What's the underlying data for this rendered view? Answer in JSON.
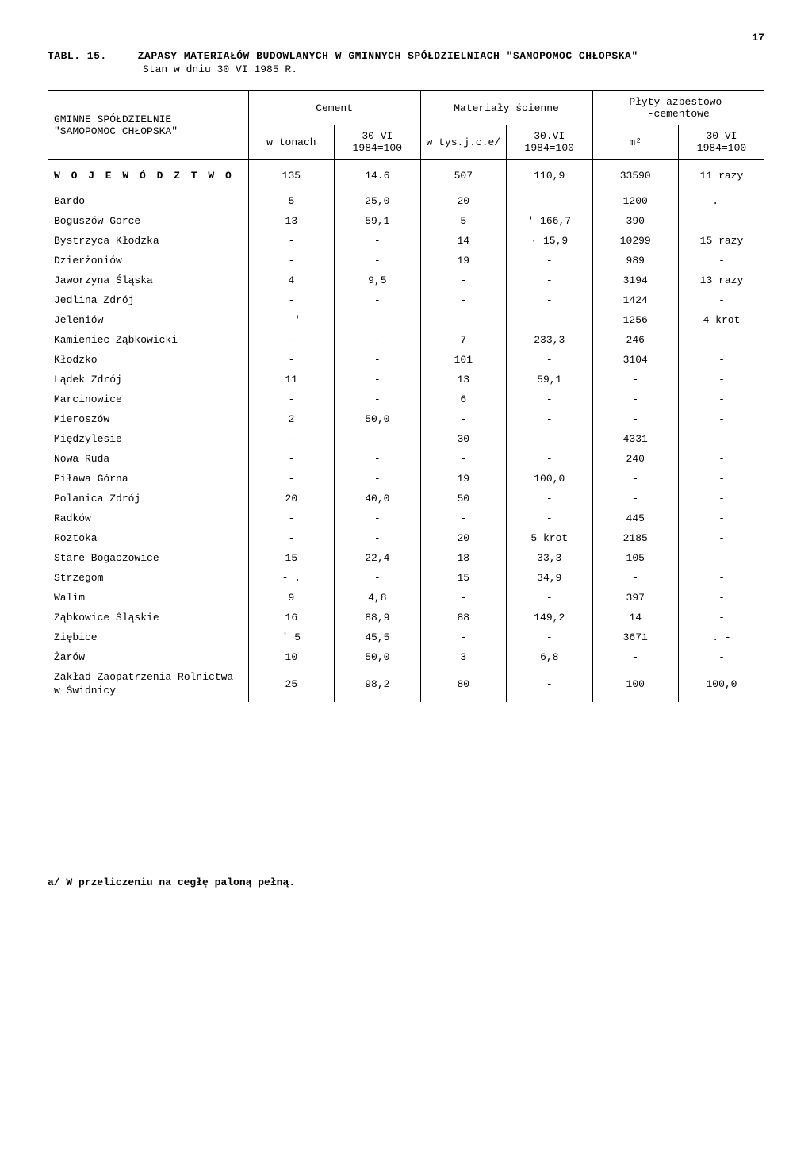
{
  "page_number": "17",
  "table_label": "TABL. 15.",
  "title": "ZAPASY MATERIAŁÓW BUDOWLANYCH W GMINNYCH SPÓŁDZIELNIACH \"SAMOPOMOC CHŁOPSKA\"",
  "subtitle": "Stan w dniu 30 VI 1985 R.",
  "header": {
    "col0_line1": "GMINNE SPÓŁDZIELNIE",
    "col0_line2": "\"SAMOPOMOC CHŁOPSKA\"",
    "group1": "Cement",
    "group2": "Materiały ścienne",
    "group3_line1": "Płyty azbestowo-",
    "group3_line2": "-cementowe",
    "sub_a": "w tonach",
    "sub_b": "30 VI 1984=100",
    "sub_c": "w tys.j.c.e/",
    "sub_d": "30.VI 1984=100",
    "sub_e": "m²",
    "sub_f": "30 VI 1984=100"
  },
  "rows": [
    {
      "label": "W O J E W Ó D Z T W O",
      "v": [
        "135",
        "14.6",
        "507",
        "110,9",
        "33590",
        "11 razy"
      ],
      "voiv": true
    },
    {
      "label": "Bardo",
      "v": [
        "5",
        "25,0",
        "20",
        "-",
        "1200",
        ". -"
      ]
    },
    {
      "label": "Boguszów-Gorce",
      "v": [
        "13",
        "59,1",
        "5",
        "' 166,7",
        "390",
        "-"
      ]
    },
    {
      "label": "Bystrzyca Kłodzka",
      "v": [
        "-",
        "-",
        "14",
        "· 15,9",
        "10299",
        "15 razy"
      ]
    },
    {
      "label": "Dzierżoniów",
      "v": [
        "-",
        "-",
        "19",
        "-",
        "989",
        "-"
      ]
    },
    {
      "label": "Jaworzyna Śląska",
      "v": [
        "4",
        "9,5",
        "-",
        "-",
        "3194",
        "13 razy"
      ]
    },
    {
      "label": "Jedlina Zdrój",
      "v": [
        "-",
        "-",
        "-",
        "-",
        "1424",
        "-"
      ]
    },
    {
      "label": "Jeleniów",
      "v": [
        "- '",
        "-",
        "-",
        "-",
        "1256",
        "4 krot"
      ]
    },
    {
      "label": "Kamieniec Ząbkowicki",
      "v": [
        "-",
        "-",
        "7",
        "233,3",
        "246",
        "-"
      ]
    },
    {
      "label": "Kłodzko",
      "v": [
        "-",
        "-",
        "101",
        "-",
        "3104",
        "-"
      ]
    },
    {
      "label": "Lądek Zdrój",
      "v": [
        "11",
        "-",
        "13",
        "59,1",
        "-",
        "-"
      ]
    },
    {
      "label": "Marcinowice",
      "v": [
        "-",
        "-",
        "6",
        "-",
        "-",
        "-"
      ]
    },
    {
      "label": "Mieroszów",
      "v": [
        "2",
        "50,0",
        "-",
        "-",
        "-",
        "-"
      ]
    },
    {
      "label": "Międzylesie",
      "v": [
        "-",
        "-",
        "30",
        "-",
        "4331",
        "-"
      ]
    },
    {
      "label": "Nowa Ruda",
      "v": [
        "-",
        "-",
        "-",
        "-",
        "240",
        "-"
      ]
    },
    {
      "label": "Piława Górna",
      "v": [
        "-",
        "-",
        "19",
        "100,0",
        "-",
        "-"
      ]
    },
    {
      "label": "Polanica Zdrój",
      "v": [
        "20",
        "40,0",
        "50",
        "-",
        "-",
        "-"
      ]
    },
    {
      "label": "Radków",
      "v": [
        "-",
        "-",
        "-",
        "-",
        "445",
        "-"
      ]
    },
    {
      "label": "Roztoka",
      "v": [
        "-",
        "-",
        "20",
        "5 krot",
        "2185",
        "-"
      ]
    },
    {
      "label": "Stare Bogaczowice",
      "v": [
        "15",
        "22,4",
        "18",
        "33,3",
        "105",
        "-"
      ]
    },
    {
      "label": "Strzegom",
      "v": [
        "- .",
        "-",
        "15",
        "34,9",
        "-",
        "-"
      ]
    },
    {
      "label": "Walim",
      "v": [
        "9",
        "4,8",
        "-",
        "-",
        "397",
        "-"
      ]
    },
    {
      "label": "Ząbkowice Śląskie",
      "v": [
        "16",
        "88,9",
        "88",
        "149,2",
        "14",
        "-"
      ]
    },
    {
      "label": "Ziębice",
      "v": [
        "' 5",
        "45,5",
        "-",
        "-",
        "3671",
        ". -"
      ]
    },
    {
      "label": "Żarów",
      "v": [
        "10",
        "50,0",
        "3",
        "6,8",
        "-",
        "-"
      ]
    },
    {
      "label": "Zakład Zaopatrzenia Rolnictwa w Świdnicy",
      "v": [
        "25",
        "98,2",
        "80",
        "-",
        "100",
        "100,0"
      ],
      "multiline": true
    }
  ],
  "footnote": "a/ W przeliczeniu na cegłę paloną pełną.",
  "style": {
    "background_color": "#ffffff",
    "text_color": "#000000",
    "font_family": "Courier New, monospace",
    "col_widths_pct": [
      28,
      12,
      12,
      12,
      12,
      12,
      12
    ]
  }
}
